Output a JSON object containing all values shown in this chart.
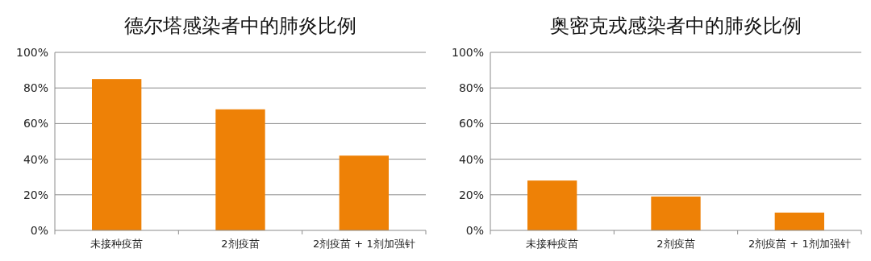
{
  "chart_data": [
    {
      "type": "bar",
      "title": "德尔塔感染者中的肺炎比例",
      "categories": [
        "未接种疫苗",
        "2剂疫苗",
        "2剂疫苗 + 1剂加强针"
      ],
      "values": [
        85,
        68,
        42
      ],
      "color": "#ee8106",
      "ylim": [
        0,
        100
      ],
      "yticks": [
        {
          "value": 0,
          "label": "0%"
        },
        {
          "value": 20,
          "label": "20%"
        },
        {
          "value": 40,
          "label": "40%"
        },
        {
          "value": 60,
          "label": "60%"
        },
        {
          "value": 80,
          "label": "80%"
        },
        {
          "value": 100,
          "label": "100%"
        }
      ],
      "grid": "y"
    },
    {
      "type": "bar",
      "title": "奥密克戎感染者中的肺炎比例",
      "categories": [
        "未接种疫苗",
        "2剂疫苗",
        "2剂疫苗 + 1剂加强针"
      ],
      "values": [
        28,
        19,
        10
      ],
      "color": "#ee8106",
      "ylim": [
        0,
        100
      ],
      "yticks": [
        {
          "value": 0,
          "label": "0%"
        },
        {
          "value": 20,
          "label": "20%"
        },
        {
          "value": 40,
          "label": "40%"
        },
        {
          "value": 60,
          "label": "60%"
        },
        {
          "value": 80,
          "label": "80%"
        },
        {
          "value": 100,
          "label": "100%"
        }
      ],
      "grid": "y"
    }
  ]
}
